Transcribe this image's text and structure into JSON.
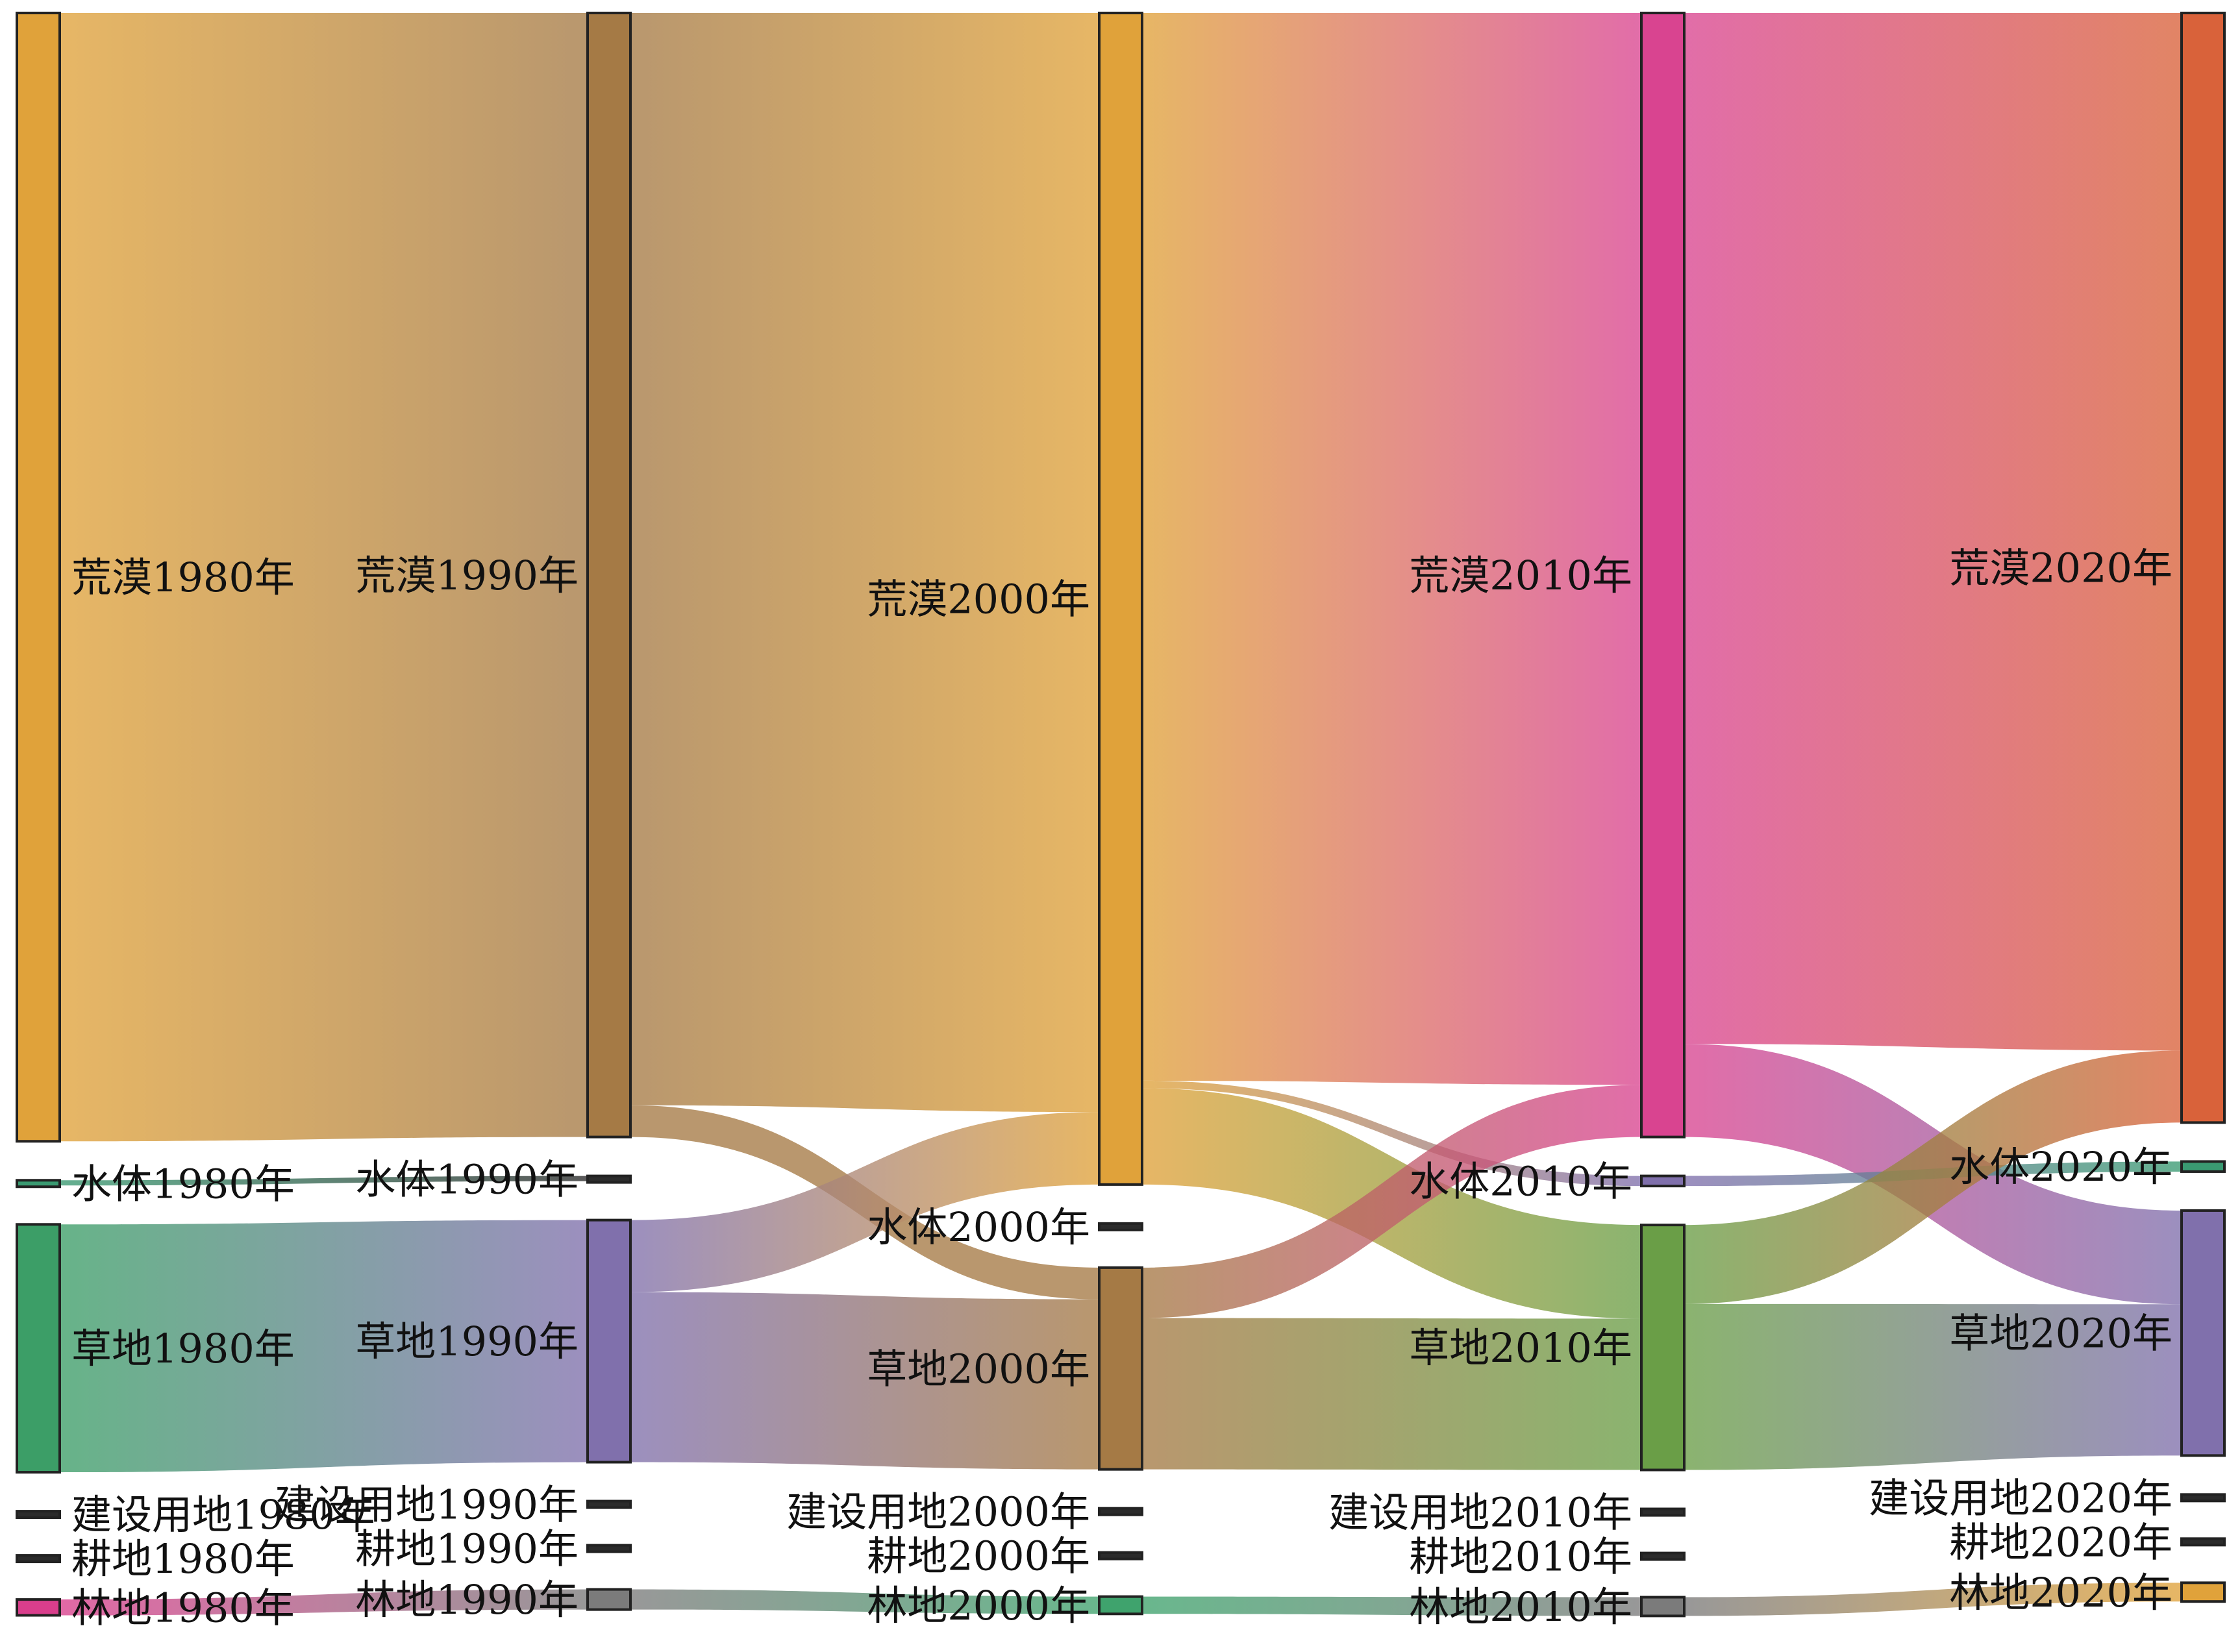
{
  "chart_data": {
    "type": "sankey",
    "title": "",
    "years": [
      "1980",
      "1990",
      "2000",
      "2010",
      "2020"
    ],
    "nodes": [
      {
        "id": "desert_1980",
        "label": "荒漠1980年",
        "year": "1980",
        "category": "荒漠",
        "color": "#e0a23a",
        "value": 78.3
      },
      {
        "id": "water_1980",
        "label": "水体1980年",
        "year": "1980",
        "category": "水体",
        "color": "#3a9a72",
        "value": 0.15
      },
      {
        "id": "grass_1980",
        "label": "草地1980年",
        "year": "1980",
        "category": "草地",
        "color": "#3c9e67",
        "value": 17.2
      },
      {
        "id": "built_1980",
        "label": "建设用地1980年",
        "year": "1980",
        "category": "建设用地",
        "color": "#2b2b2b",
        "value": 0.05
      },
      {
        "id": "farm_1980",
        "label": "耕地1980年",
        "year": "1980",
        "category": "耕地",
        "color": "#2b2b2b",
        "value": 0.1
      },
      {
        "id": "forest_1980",
        "label": "林地1980年",
        "year": "1980",
        "category": "林地",
        "color": "#d93e8c",
        "value": 1.1
      },
      {
        "id": "desert_1990",
        "label": "荒漠1990年",
        "year": "1990",
        "category": "荒漠",
        "color": "#a57a45",
        "value": 78.0
      },
      {
        "id": "water_1990",
        "label": "水体1990年",
        "year": "1990",
        "category": "水体",
        "color": "#2b2b2b",
        "value": 0.1
      },
      {
        "id": "grass_1990",
        "label": "草地1990年",
        "year": "1990",
        "category": "草地",
        "color": "#8070ac",
        "value": 16.8
      },
      {
        "id": "built_1990",
        "label": "建设用地1990年",
        "year": "1990",
        "category": "建设用地",
        "color": "#2b2b2b",
        "value": 0.05
      },
      {
        "id": "farm_1990",
        "label": "耕地1990年",
        "year": "1990",
        "category": "耕地",
        "color": "#2b2b2b",
        "value": 0.1
      },
      {
        "id": "forest_1990",
        "label": "林地1990年",
        "year": "1990",
        "category": "林地",
        "color": "#7b7b7b",
        "value": 1.4
      },
      {
        "id": "desert_2000",
        "label": "荒漠2000年",
        "year": "2000",
        "category": "荒漠",
        "color": "#e0a23a",
        "value": 81.3
      },
      {
        "id": "water_2000",
        "label": "水体2000年",
        "year": "2000",
        "category": "水体",
        "color": "#2b2b2b",
        "value": 0.1
      },
      {
        "id": "grass_2000",
        "label": "草地2000年",
        "year": "2000",
        "category": "草地",
        "color": "#a57a45",
        "value": 14.0
      },
      {
        "id": "built_2000",
        "label": "建设用地2000年",
        "year": "2000",
        "category": "建设用地",
        "color": "#2b2b2b",
        "value": 0.05
      },
      {
        "id": "farm_2000",
        "label": "耕地2000年",
        "year": "2000",
        "category": "耕地",
        "color": "#2b2b2b",
        "value": 0.1
      },
      {
        "id": "forest_2000",
        "label": "林地2000年",
        "year": "2000",
        "category": "林地",
        "color": "#3fa36d",
        "value": 1.2
      },
      {
        "id": "desert_2010",
        "label": "荒漠2010年",
        "year": "2010",
        "category": "荒漠",
        "color": "#d94490",
        "value": 78.0
      },
      {
        "id": "water_2010",
        "label": "水体2010年",
        "year": "2010",
        "category": "水体",
        "color": "#8070ac",
        "value": 0.7
      },
      {
        "id": "grass_2010",
        "label": "草地2010年",
        "year": "2010",
        "category": "草地",
        "color": "#6a9e47",
        "value": 17.0
      },
      {
        "id": "built_2010",
        "label": "建设用地2010年",
        "year": "2010",
        "category": "建设用地",
        "color": "#2b2b2b",
        "value": 0.05
      },
      {
        "id": "farm_2010",
        "label": "耕地2010年",
        "year": "2010",
        "category": "耕地",
        "color": "#2b2b2b",
        "value": 0.1
      },
      {
        "id": "forest_2010",
        "label": "林地2010年",
        "year": "2010",
        "category": "林地",
        "color": "#7b7b7b",
        "value": 1.3
      },
      {
        "id": "desert_2020",
        "label": "荒漠2020年",
        "year": "2020",
        "category": "荒漠",
        "color": "#d9623a",
        "value": 77.0
      },
      {
        "id": "water_2020",
        "label": "水体2020年",
        "year": "2020",
        "category": "水体",
        "color": "#3a9a72",
        "value": 0.7
      },
      {
        "id": "grass_2020",
        "label": "草地2020年",
        "year": "2020",
        "category": "草地",
        "color": "#8070ac",
        "value": 17.0
      },
      {
        "id": "built_2020",
        "label": "建设用地2020年",
        "year": "2020",
        "category": "建设用地",
        "color": "#2b2b2b",
        "value": 0.05
      },
      {
        "id": "farm_2020",
        "label": "耕地2020年",
        "year": "2020",
        "category": "耕地",
        "color": "#2b2b2b",
        "value": 0.1
      },
      {
        "id": "forest_2020",
        "label": "林地2020年",
        "year": "2020",
        "category": "林地",
        "color": "#e0a23a",
        "value": 1.3
      }
    ],
    "links": [
      {
        "source": "desert_1980",
        "target": "desert_1990",
        "value": 78.0
      },
      {
        "source": "grass_1980",
        "target": "grass_1990",
        "value": 16.8
      },
      {
        "source": "forest_1980",
        "target": "forest_1990",
        "value": 1.1
      },
      {
        "source": "water_1980",
        "target": "water_1990",
        "value": 0.1
      },
      {
        "source": "desert_1990",
        "target": "desert_2000",
        "value": 75.8
      },
      {
        "source": "desert_1990",
        "target": "grass_2000",
        "value": 2.2
      },
      {
        "source": "grass_1990",
        "target": "desert_2000",
        "value": 5.0
      },
      {
        "source": "grass_1990",
        "target": "grass_2000",
        "value": 11.8
      },
      {
        "source": "forest_1990",
        "target": "forest_2000",
        "value": 1.2
      },
      {
        "source": "desert_2000",
        "target": "desert_2010",
        "value": 72.0
      },
      {
        "source": "desert_2000",
        "target": "grass_2010",
        "value": 6.5
      },
      {
        "source": "desert_2000",
        "target": "water_2010",
        "value": 0.5
      },
      {
        "source": "grass_2000",
        "target": "desert_2010",
        "value": 3.5
      },
      {
        "source": "grass_2000",
        "target": "grass_2010",
        "value": 10.5
      },
      {
        "source": "forest_2000",
        "target": "forest_2010",
        "value": 1.2
      },
      {
        "source": "desert_2010",
        "target": "desert_2020",
        "value": 72.0
      },
      {
        "source": "desert_2010",
        "target": "grass_2020",
        "value": 6.5
      },
      {
        "source": "water_2010",
        "target": "water_2020",
        "value": 0.6
      },
      {
        "source": "grass_2010",
        "target": "desert_2020",
        "value": 5.0
      },
      {
        "source": "grass_2010",
        "target": "grass_2020",
        "value": 10.5
      },
      {
        "source": "forest_2010",
        "target": "forest_2020",
        "value": 1.2
      }
    ]
  }
}
